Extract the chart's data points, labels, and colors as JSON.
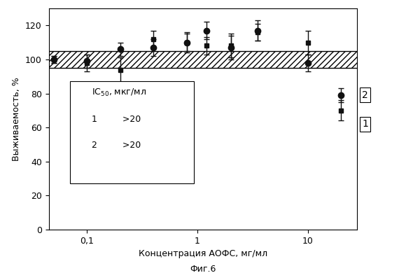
{
  "xlabel": "Концентрация АОФС, мг/мл",
  "ylabel": "Выживаемость, %",
  "fig_label": "Фиг.6",
  "band_lower": 95,
  "band_upper": 105,
  "xlim_log": [
    0.045,
    28
  ],
  "ylim": [
    0,
    130
  ],
  "yticks": [
    0,
    20,
    40,
    60,
    80,
    100,
    120
  ],
  "xticks": [
    0.1,
    1,
    10
  ],
  "xtick_labels": [
    "0,1",
    "1",
    "10"
  ],
  "series1_x": [
    0.05,
    0.1,
    0.2,
    0.4,
    0.8,
    1.2,
    2.0,
    3.5,
    10.0,
    20.0
  ],
  "series1_y": [
    100,
    98,
    94,
    112,
    110,
    108,
    108,
    116,
    110,
    70
  ],
  "series1_yerr": [
    2,
    5,
    7,
    5,
    5,
    5,
    7,
    5,
    7,
    6
  ],
  "series2_x": [
    0.05,
    0.1,
    0.2,
    0.4,
    0.8,
    1.2,
    2.0,
    3.5,
    10.0,
    20.0
  ],
  "series2_y": [
    100,
    99,
    106,
    107,
    110,
    117,
    107,
    117,
    98,
    79
  ],
  "series2_yerr": [
    2,
    4,
    4,
    5,
    6,
    5,
    7,
    6,
    5,
    4
  ],
  "line_color": "#111111",
  "label1": "1",
  "label2": "2"
}
